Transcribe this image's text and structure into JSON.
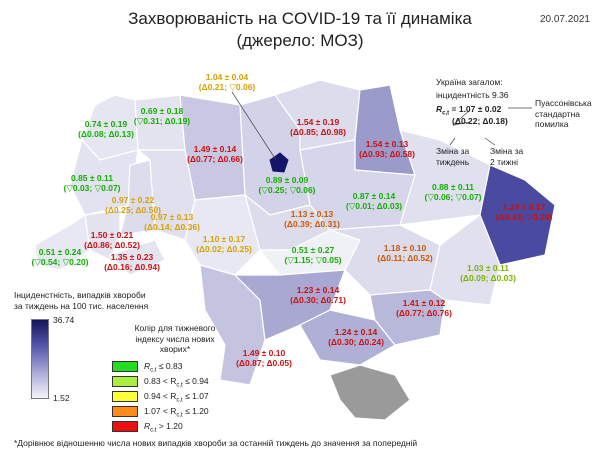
{
  "header": {
    "title_line1": "Захворюваність на COVID-19 та її динаміка",
    "title_line2": "(джерело: МОЗ)",
    "date": "20.07.2021"
  },
  "country": {
    "heading": "Україна загалом:",
    "incidence": "інцидентність 9.36",
    "rc_label": "R",
    "rc_sub": "c,t",
    "rc_value": " = 1.07 ± 0.02",
    "rc_changes": "(Δ0.22; Δ0.18)",
    "poisson_line1": "Пуассонівська",
    "poisson_line2": "стандартна",
    "poisson_line3": "помилка",
    "week_line1": "Зміна за",
    "week_line2": "тиждень",
    "two_week_line1": "Зміна за",
    "two_week_line2": "2 тижні"
  },
  "legend": {
    "incidence_line1": "Інциденстність, випадків хвороби",
    "incidence_line2": "за тиждень на 100 тис. населення",
    "scale_max": "36.74",
    "scale_min": "1.52",
    "color_title_line1": "Колір для тижневого",
    "color_title_line2": "індексу числа нових хворих*",
    "items": [
      {
        "label": "R",
        "sub": "c,t",
        "rest": " ≤ 0.83",
        "color": "#22dd22"
      },
      {
        "label": "0.83 < R",
        "sub": "c,t",
        "rest": " ≤ 0.94",
        "color": "#aaee44"
      },
      {
        "label": "0.94 < R",
        "sub": "c,t",
        "rest": " ≤ 1.07",
        "color": "#ffff33"
      },
      {
        "label": "1.07 < R",
        "sub": "c,t",
        "rest": " ≤ 1.20",
        "color": "#ff8c1a"
      },
      {
        "label": "R",
        "sub": "c,t",
        "rest": " > 1.20",
        "color": "#ee1111"
      }
    ]
  },
  "footnote": "*Дорівнює відношенню числа нових випадків хвороби за останній тиждень до значення за попередній",
  "regions": [
    {
      "id": "volyn",
      "color": "#12b000",
      "value": "0.74 ± 0.19",
      "change": "(Δ0.08; Δ0.13)"
    },
    {
      "id": "rivne",
      "color": "#12b000",
      "value": "0.69 ± 0.18",
      "change": "(▽0.31; Δ0.19)"
    },
    {
      "id": "zhytomyr",
      "color": "#cc1010",
      "value": "1.49 ± 0.14",
      "change": "(Δ0.77; Δ0.66)"
    },
    {
      "id": "kyiv_city",
      "color": "#d8a000",
      "value": "1.04 ± 0.04",
      "change": "(Δ0.21; ▽0.06)"
    },
    {
      "id": "kyiv_obl",
      "color": "#12b000",
      "value": "0.89 ± 0.09",
      "change": "(▽0.25; ▽0.06)"
    },
    {
      "id": "chernihiv",
      "color": "#cc1010",
      "value": "1.54 ± 0.19",
      "change": "(Δ0.85; Δ0.98)"
    },
    {
      "id": "sumy",
      "color": "#cc1010",
      "value": "1.54 ± 0.13",
      "change": "(Δ0.93; Δ0.58)"
    },
    {
      "id": "lviv",
      "color": "#12b000",
      "value": "0.85 ± 0.11",
      "change": "(▽0.03; ▽0.07)"
    },
    {
      "id": "ternopil",
      "color": "#d8a000",
      "value": "0.97 ± 0.22",
      "change": "(Δ0.25; Δ0.50)"
    },
    {
      "id": "khmelnytskyi",
      "color": "#d8a000",
      "value": "0.97 ± 0.13",
      "change": "(Δ0.14; Δ0.36)"
    },
    {
      "id": "vinnytsia",
      "color": "#d8a000",
      "value": "1.10 ± 0.17",
      "change": "(Δ0.02; Δ0.25)"
    },
    {
      "id": "cherkasy",
      "color": "#d05800",
      "value": "1.13 ± 0.13",
      "change": "(Δ0.39; Δ0.31)"
    },
    {
      "id": "poltava",
      "color": "#12b000",
      "value": "0.87 ± 0.14",
      "change": "(▽0.01; Δ0.03)"
    },
    {
      "id": "kharkiv",
      "color": "#12b000",
      "value": "0.88 ± 0.11",
      "change": "(▽0.06; ▽0.07)"
    },
    {
      "id": "luhansk",
      "color": "#cc1010",
      "value": "1.29 ± 0.17",
      "change": "(Δ0.43; ▽0.29)"
    },
    {
      "id": "zakarpattia",
      "color": "#12b000",
      "value": "0.51 ± 0.24",
      "change": "(▽0.54; ▽0.20)"
    },
    {
      "id": "ivano_frankivsk",
      "color": "#cc1010",
      "value": "1.50 ± 0.21",
      "change": "(Δ0.86; Δ0.52)"
    },
    {
      "id": "chernivtsi",
      "color": "#cc1010",
      "value": "1.35 ± 0.23",
      "change": "(Δ0.16; Δ0.94)"
    },
    {
      "id": "kirovohrad",
      "color": "#12b000",
      "value": "0.51 ± 0.27",
      "change": "(▽1.15; ▽0.05)"
    },
    {
      "id": "dnipropetrovsk",
      "color": "#d05800",
      "value": "1.18 ± 0.10",
      "change": "(Δ0.11; Δ0.52)"
    },
    {
      "id": "donetsk",
      "color": "#78b400",
      "value": "1.03 ± 0.11",
      "change": "(Δ0.09; Δ0.03)"
    },
    {
      "id": "mykolaiv",
      "color": "#cc1010",
      "value": "1.23 ± 0.14",
      "change": "(Δ0.30; Δ0.71)"
    },
    {
      "id": "zaporizhzhia",
      "color": "#cc1010",
      "value": "1.41 ± 0.12",
      "change": "(Δ0.77; Δ0.76)"
    },
    {
      "id": "kherson",
      "color": "#cc1010",
      "value": "1.24 ± 0.14",
      "change": "(Δ0.30; Δ0.24)"
    },
    {
      "id": "odesa",
      "color": "#cc1010",
      "value": "1.49 ± 0.10",
      "change": "(Δ0.87; Δ0.05)"
    }
  ]
}
